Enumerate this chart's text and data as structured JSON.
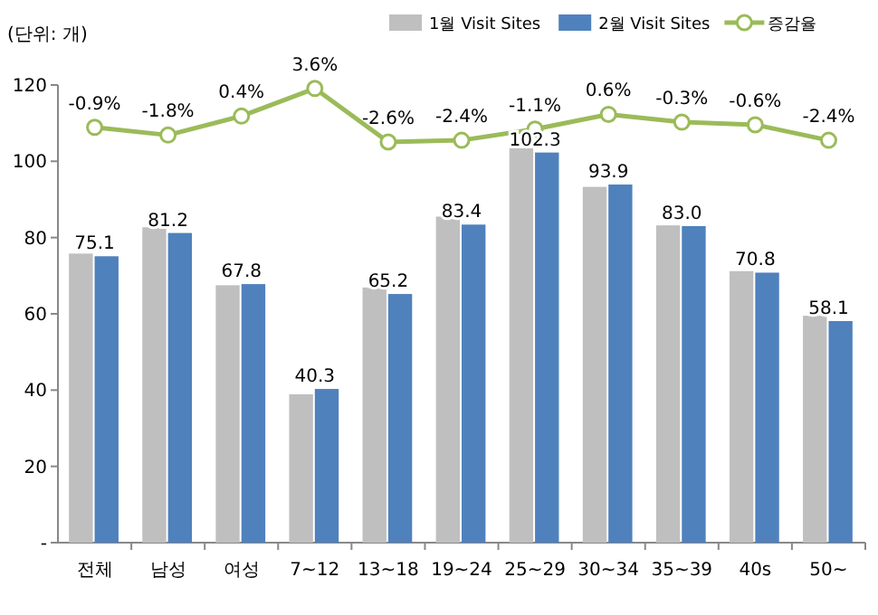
{
  "chart_data": {
    "type": "bar",
    "ylabel": "(단위: 개)",
    "categories": [
      "전체",
      "남성",
      "여성",
      "7~12",
      "13~18",
      "19~24",
      "25~29",
      "30~34",
      "35~39",
      "40s",
      "50~"
    ],
    "ylim": [
      0,
      120
    ],
    "yticks": [
      {
        "value": 0,
        "label": "-"
      },
      20,
      40,
      60,
      80,
      100,
      120
    ],
    "y2lim": [
      -49,
      4
    ],
    "legend": "top right",
    "grid": false,
    "series": [
      {
        "name": "1월 Visit Sites",
        "color": "#bfbfbf",
        "values": [
          75.8,
          82.7,
          67.5,
          38.9,
          66.9,
          85.5,
          103.4,
          93.3,
          83.2,
          71.2,
          59.5
        ]
      },
      {
        "name": "2월 Visit Sites",
        "color": "#4f81bd",
        "values": [
          75.1,
          81.2,
          67.8,
          40.3,
          65.2,
          83.4,
          102.3,
          93.9,
          83.0,
          70.8,
          58.1
        ],
        "value_labels": [
          "75.1",
          "81.2",
          "67.8",
          "40.3",
          "65.2",
          "83.4",
          "102.3",
          "93.9",
          "83.0",
          "70.8",
          "58.1"
        ]
      },
      {
        "name": "증감율",
        "type": "line",
        "axis": "y2",
        "color": "#9bbb59",
        "marker": "circle",
        "values": [
          -0.9,
          -1.8,
          0.4,
          3.6,
          -2.6,
          -2.4,
          -1.1,
          0.6,
          -0.3,
          -0.6,
          -2.4
        ],
        "value_labels": [
          "-0.9%",
          "-1.8%",
          "0.4%",
          "3.6%",
          "-2.6%",
          "-2.4%",
          "-1.1%",
          "0.6%",
          "-0.3%",
          "-0.6%",
          "-2.4%"
        ]
      }
    ]
  }
}
